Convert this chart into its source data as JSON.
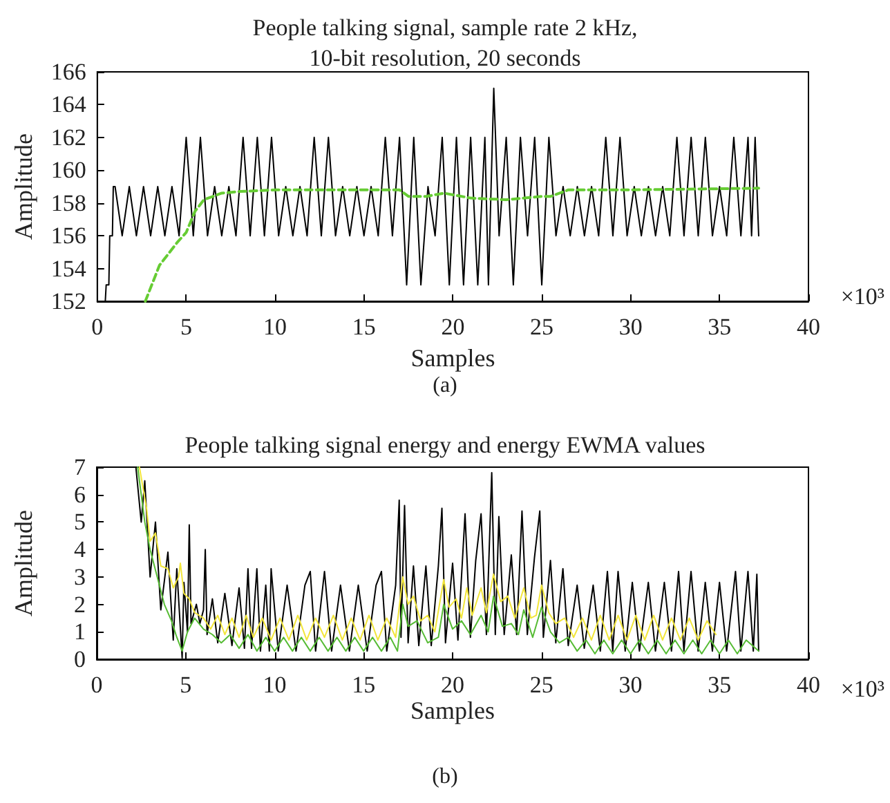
{
  "chart_data": [
    {
      "type": "line",
      "title": "People talking signal, sample rate 2 kHz,\n10-bit resolution, 20 seconds",
      "xlabel": "Samples",
      "ylabel": "Amplitude",
      "annotations": [
        "×10³",
        "(a)"
      ],
      "xlim": [
        0,
        40
      ],
      "xticks": [
        0,
        5,
        10,
        15,
        20,
        25,
        30,
        35,
        40
      ],
      "ylim": [
        152,
        166
      ],
      "yticks": [
        152,
        154,
        156,
        158,
        160,
        162,
        164,
        166
      ],
      "marker": "none",
      "series": [
        {
          "color": "#000000",
          "line_style": "solid",
          "x": [
            0.45,
            0.5,
            0.65,
            0.7,
            0.85,
            0.9,
            1.0,
            1.4,
            1.8,
            2.2,
            2.6,
            3.0,
            3.4,
            3.8,
            4.2,
            4.6,
            5.0,
            5.4,
            5.8,
            6.2,
            6.6,
            7.0,
            7.4,
            7.8,
            8.2,
            8.6,
            9.0,
            9.4,
            9.8,
            10.2,
            10.6,
            11.0,
            11.4,
            11.8,
            12.2,
            12.6,
            13.0,
            13.4,
            13.8,
            14.2,
            14.6,
            15.0,
            15.4,
            15.8,
            16.2,
            16.6,
            17.0,
            17.4,
            17.8,
            18.2,
            18.6,
            19.0,
            19.4,
            19.8,
            20.2,
            20.6,
            21.0,
            21.4,
            21.8,
            22.0,
            22.3,
            22.6,
            23.0,
            23.4,
            23.8,
            24.2,
            24.6,
            25.0,
            25.4,
            25.8,
            26.2,
            26.6,
            27.0,
            27.4,
            27.8,
            28.2,
            28.6,
            29.0,
            29.4,
            29.8,
            30.2,
            30.6,
            31.0,
            31.4,
            31.8,
            32.2,
            32.6,
            33.0,
            33.4,
            33.8,
            34.2,
            34.6,
            35.0,
            35.4,
            35.8,
            36.2,
            36.6,
            36.8,
            37.0,
            37.2
          ],
          "values": [
            152,
            153,
            153,
            156,
            156,
            159,
            159,
            156,
            159,
            156,
            159,
            156,
            159,
            156,
            159,
            156,
            162,
            156,
            162,
            156,
            159,
            156,
            159,
            156,
            162,
            156,
            162,
            156,
            162,
            156,
            159,
            156,
            159,
            156,
            162,
            156,
            162,
            156,
            159,
            156,
            159,
            156,
            159,
            156,
            162,
            156,
            162,
            153,
            162,
            153,
            159,
            156,
            162,
            153,
            162,
            153,
            162,
            153,
            162,
            153,
            165,
            156,
            162,
            153,
            162,
            156,
            162,
            153,
            162,
            156,
            159,
            156,
            159,
            156,
            159,
            156,
            162,
            156,
            162,
            156,
            159,
            156,
            159,
            156,
            159,
            156,
            162,
            156,
            162,
            156,
            162,
            156,
            159,
            156,
            162,
            156,
            162,
            156,
            162,
            156
          ]
        },
        {
          "color": "#66cc33",
          "line_style": "dashed",
          "x": [
            2.7,
            3.5,
            4.5,
            5.0,
            5.5,
            6.0,
            7.0,
            8.0,
            10.0,
            17.0,
            17.5,
            18.5,
            19.5,
            21.0,
            23.0,
            25.0,
            25.5,
            26.5,
            30.0,
            37.2
          ],
          "values": [
            152,
            154.2,
            155.6,
            156.2,
            157.5,
            158.2,
            158.6,
            158.7,
            158.8,
            158.8,
            158.4,
            158.4,
            158.6,
            158.3,
            158.2,
            158.4,
            158.4,
            158.8,
            158.8,
            158.9
          ]
        }
      ]
    },
    {
      "type": "line",
      "title": "People talking signal energy and energy EWMA values",
      "xlabel": "Samples",
      "ylabel": "Amplitude",
      "annotations": [
        "×10³",
        "(b)"
      ],
      "xlim": [
        0,
        40
      ],
      "xticks": [
        0,
        5,
        10,
        15,
        20,
        25,
        30,
        35,
        40
      ],
      "ylim": [
        0,
        7
      ],
      "yticks": [
        0,
        1,
        2,
        3,
        4,
        5,
        6,
        7
      ],
      "marker": "none",
      "series": [
        {
          "color": "#000000",
          "line_style": "solid",
          "x": [
            2.2,
            2.5,
            2.7,
            3.0,
            3.3,
            3.6,
            4.0,
            4.3,
            4.5,
            4.8,
            4.9,
            5.1,
            5.2,
            5.3,
            5.6,
            5.8,
            6.0,
            6.1,
            6.2,
            6.5,
            6.8,
            7.2,
            7.6,
            8.0,
            8.3,
            8.5,
            8.7,
            9.0,
            9.2,
            9.5,
            9.7,
            9.8,
            10.2,
            10.7,
            11.2,
            11.7,
            12.0,
            12.3,
            12.8,
            13.2,
            13.7,
            14.2,
            14.7,
            15.2,
            15.7,
            16.0,
            16.3,
            16.8,
            17.0,
            17.1,
            17.3,
            17.5,
            17.8,
            18.1,
            18.5,
            18.8,
            19.2,
            19.4,
            19.6,
            20.0,
            20.3,
            20.7,
            21.0,
            21.3,
            21.6,
            21.9,
            22.2,
            22.4,
            22.6,
            22.9,
            23.3,
            23.6,
            23.9,
            24.2,
            24.6,
            24.9,
            25.1,
            25.5,
            25.8,
            26.2,
            26.5,
            27.0,
            27.4,
            27.9,
            28.3,
            28.7,
            29.0,
            29.3,
            29.7,
            30.1,
            30.5,
            31.0,
            31.4,
            31.9,
            32.3,
            32.7,
            33.0,
            33.4,
            33.8,
            34.2,
            34.6,
            35.0,
            35.4,
            35.9,
            36.2,
            36.6,
            36.9,
            37.1,
            37.2
          ],
          "values": [
            7,
            5,
            6.5,
            3,
            5,
            1.8,
            3.9,
            0.7,
            3.3,
            0.05,
            2.8,
            1.0,
            4.9,
            1.3,
            2.0,
            1.3,
            1.8,
            4.0,
            0.9,
            2.2,
            0.6,
            2.4,
            0.5,
            2.6,
            0.4,
            3.3,
            0.4,
            3.3,
            0.3,
            2.7,
            0.3,
            3.3,
            0.3,
            2.7,
            0.3,
            2.7,
            3.2,
            0.3,
            3.2,
            0.3,
            2.7,
            0.3,
            2.7,
            0.3,
            2.7,
            3.2,
            0.3,
            2.7,
            5.8,
            0.8,
            5.6,
            0.6,
            3.4,
            0.5,
            3.4,
            0.5,
            3.4,
            5.5,
            0.6,
            3.5,
            0.7,
            5.3,
            0.8,
            3.6,
            5.3,
            0.9,
            6.8,
            0.9,
            5.2,
            0.9,
            3.8,
            0.9,
            5.4,
            0.9,
            3.7,
            5.4,
            0.8,
            3.6,
            0.6,
            3.3,
            0.5,
            2.7,
            0.4,
            2.7,
            0.3,
            3.2,
            0.3,
            3.2,
            0.3,
            2.8,
            0.3,
            2.8,
            0.3,
            2.8,
            0.3,
            3.2,
            0.3,
            3.2,
            0.3,
            2.8,
            0.3,
            2.8,
            0.3,
            3.2,
            0.3,
            3.2,
            0.3,
            3.1,
            0.3
          ]
        },
        {
          "color": "#55bb33",
          "line_style": "solid",
          "x": [
            2.3,
            2.7,
            3.0,
            3.4,
            3.8,
            4.2,
            4.5,
            4.8,
            5.1,
            5.5,
            6.0,
            6.5,
            7.0,
            7.5,
            8.0,
            8.5,
            9.0,
            9.5,
            10.0,
            10.5,
            11.0,
            11.5,
            12.0,
            12.5,
            13.0,
            13.5,
            14.0,
            14.5,
            15.0,
            15.5,
            16.0,
            16.5,
            16.9,
            17.2,
            17.5,
            18.0,
            18.6,
            19.2,
            19.5,
            20.0,
            20.5,
            21.0,
            21.6,
            22.0,
            22.3,
            22.8,
            23.3,
            23.7,
            24.0,
            24.5,
            25.0,
            25.5,
            26.0,
            26.5,
            27.0,
            27.5,
            28.0,
            28.5,
            29.0,
            29.5,
            30.0,
            30.5,
            31.0,
            31.5,
            32.0,
            32.5,
            33.0,
            33.5,
            34.0,
            34.5,
            35.0,
            35.5,
            36.0,
            36.5,
            37.2
          ],
          "values": [
            7,
            5.0,
            4.0,
            3.0,
            2.0,
            1.4,
            0.8,
            0.3,
            1.0,
            1.5,
            1.1,
            0.9,
            0.6,
            0.9,
            0.4,
            0.9,
            0.3,
            0.8,
            0.3,
            0.8,
            0.3,
            0.8,
            0.3,
            0.8,
            0.3,
            0.8,
            0.3,
            0.8,
            0.3,
            0.8,
            0.3,
            0.8,
            0.3,
            2.0,
            1.2,
            1.4,
            0.6,
            0.8,
            2.0,
            1.1,
            1.4,
            0.9,
            1.6,
            1.0,
            2.3,
            1.2,
            1.3,
            0.9,
            1.8,
            0.8,
            1.9,
            1.0,
            0.6,
            0.8,
            0.3,
            0.7,
            0.2,
            0.7,
            0.2,
            0.7,
            0.2,
            0.7,
            0.2,
            0.7,
            0.2,
            0.7,
            0.2,
            0.7,
            0.2,
            0.7,
            0.2,
            0.7,
            0.2,
            0.7,
            0.3
          ]
        },
        {
          "color": "#f2e63a",
          "line_style": "solid",
          "x": [
            2.4,
            2.8,
            3.0,
            3.3,
            3.6,
            4.0,
            4.3,
            4.6,
            4.7,
            4.9,
            5.2,
            5.5,
            6.0,
            6.4,
            6.8,
            7.2,
            7.6,
            8.0,
            8.4,
            8.8,
            9.3,
            9.8,
            10.3,
            10.8,
            11.3,
            11.8,
            12.3,
            12.8,
            13.3,
            13.8,
            14.3,
            14.8,
            15.3,
            15.8,
            16.3,
            16.8,
            17.2,
            17.5,
            17.8,
            18.2,
            18.6,
            19.0,
            19.5,
            19.8,
            20.2,
            20.5,
            20.8,
            21.1,
            21.6,
            21.9,
            22.3,
            22.7,
            23.1,
            23.5,
            24.0,
            24.4,
            24.7,
            25.0,
            25.4,
            25.8,
            26.3,
            26.8,
            27.3,
            27.8,
            28.3,
            28.8,
            29.3,
            29.8,
            30.3,
            30.8,
            31.3,
            31.8,
            32.3,
            32.8,
            33.3,
            33.8,
            34.3,
            34.8
          ],
          "values": [
            7,
            5.5,
            4.3,
            4.6,
            3.4,
            3.3,
            2.6,
            3.0,
            3.5,
            2.4,
            2.2,
            1.7,
            1.5,
            1.1,
            1.6,
            0.9,
            1.5,
            0.8,
            1.6,
            0.8,
            1.5,
            0.7,
            1.5,
            0.7,
            1.6,
            0.7,
            1.5,
            0.8,
            1.6,
            0.7,
            1.5,
            0.7,
            1.6,
            0.7,
            1.5,
            0.8,
            3.0,
            2.0,
            2.3,
            1.4,
            1.6,
            1.0,
            2.9,
            1.9,
            2.2,
            1.5,
            2.6,
            1.6,
            2.6,
            1.7,
            3.1,
            2.1,
            2.3,
            1.5,
            2.6,
            1.5,
            1.6,
            2.7,
            1.7,
            1.3,
            1.5,
            0.8,
            1.5,
            0.7,
            1.6,
            0.7,
            1.6,
            0.7,
            1.6,
            0.7,
            1.6,
            0.7,
            1.5,
            0.7,
            1.5,
            0.7,
            1.4,
            0.9
          ]
        }
      ]
    }
  ]
}
